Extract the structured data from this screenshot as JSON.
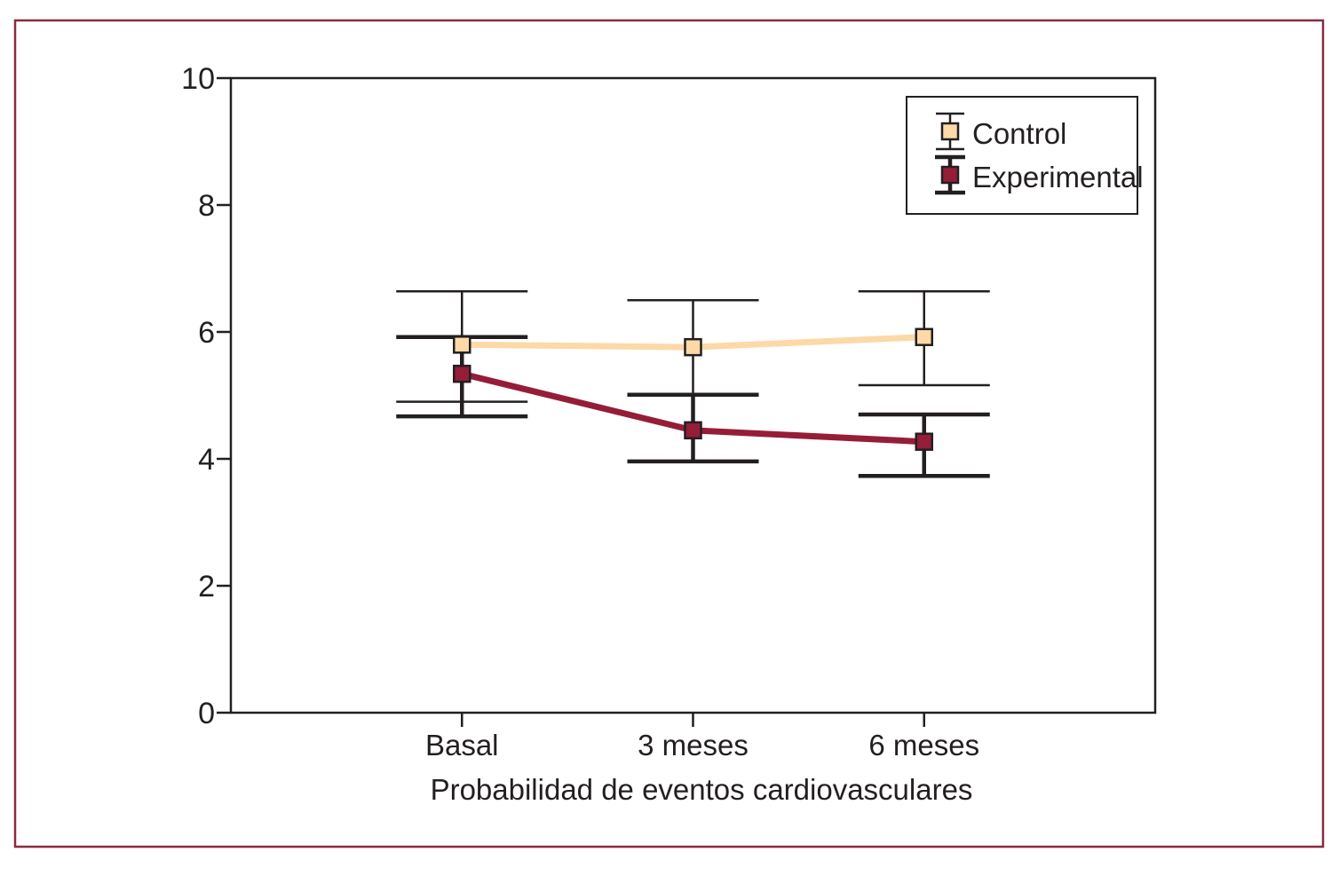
{
  "chart_data": {
    "type": "line",
    "title": "",
    "xlabel": "Probabilidad de eventos cardiovasculares",
    "ylabel": "",
    "categories": [
      "Basal",
      "3 meses",
      "6 meses"
    ],
    "ylim": [
      0,
      10
    ],
    "yticks": [
      0,
      2,
      4,
      6,
      8,
      10
    ],
    "ytick_labels": [
      "0",
      "2",
      "4",
      "6",
      "8",
      "10"
    ],
    "grid": false,
    "legend_position": "top-right",
    "series": [
      {
        "name": "Control",
        "values": [
          5.8,
          5.76,
          5.92
        ],
        "error_upper": [
          6.64,
          6.5,
          6.64
        ],
        "error_lower": [
          4.9,
          5.0,
          5.16
        ],
        "color": "#fcd9a6",
        "marker": "square"
      },
      {
        "name": "Experimental",
        "values": [
          5.34,
          4.45,
          4.27
        ],
        "error_upper": [
          5.92,
          5.01,
          4.7
        ],
        "error_lower": [
          4.67,
          3.96,
          3.73
        ],
        "color": "#951d38",
        "marker": "square"
      }
    ]
  },
  "colors": {
    "frame": "#8b2a40",
    "axis": "#231f20"
  }
}
